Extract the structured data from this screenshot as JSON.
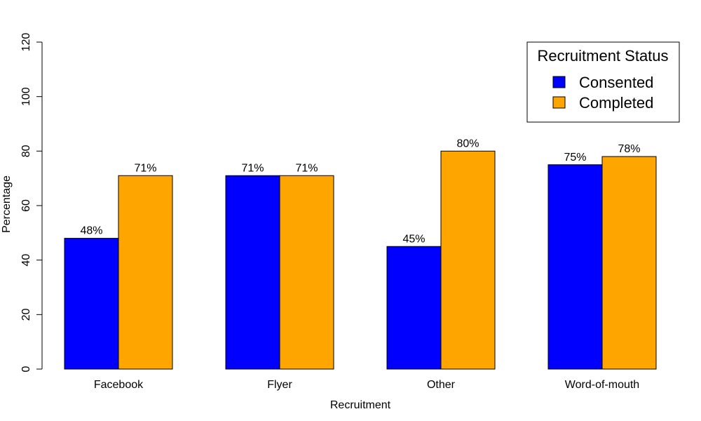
{
  "chart_data": {
    "type": "bar",
    "categories": [
      "Facebook",
      "Flyer",
      "Other",
      "Word-of-mouth"
    ],
    "series": [
      {
        "name": "Consented",
        "values": [
          48,
          71,
          45,
          75
        ],
        "color": "#0000ff"
      },
      {
        "name": "Completed",
        "values": [
          71,
          71,
          80,
          78
        ],
        "color": "#ffa500"
      }
    ],
    "data_labels": [
      [
        "48%",
        "71%",
        "45%",
        "75%"
      ],
      [
        "71%",
        "71%",
        "80%",
        "78%"
      ]
    ],
    "title": "",
    "xlabel": "Recruitment",
    "ylabel": "Percentage",
    "ylim": [
      0,
      120
    ],
    "yticks": [
      "0",
      "20",
      "40",
      "60",
      "80",
      "100",
      "120"
    ],
    "grid": false,
    "legend": {
      "title": "Recruitment Status",
      "placement": "top-right",
      "entries": [
        "Consented",
        "Completed"
      ]
    }
  }
}
